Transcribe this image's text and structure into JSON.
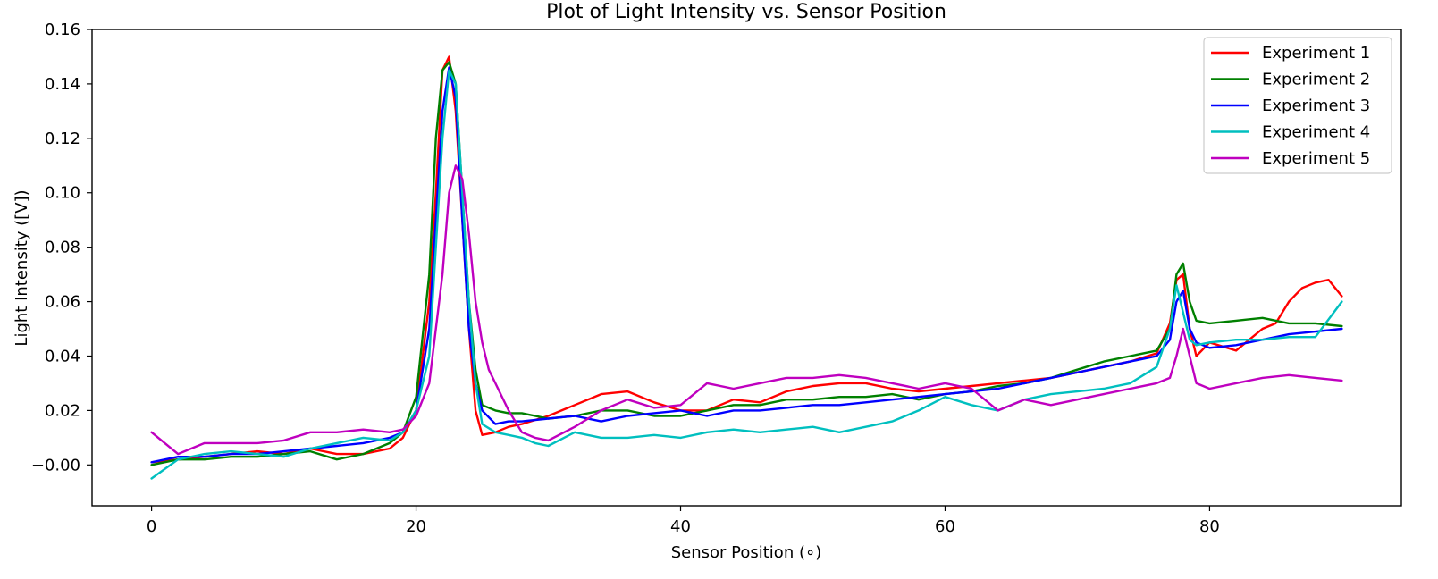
{
  "chart_data": {
    "type": "line",
    "title": "Plot of Light Intensity vs. Sensor Position",
    "xlabel": "Sensor Position (∘)",
    "ylabel": "Light Intensity ([V])",
    "xlim": [
      -4.5,
      94.5
    ],
    "ylim": [
      -0.015,
      0.16
    ],
    "x_ticks": [
      0,
      20,
      40,
      60,
      80
    ],
    "y_ticks": [
      0.0,
      0.02,
      0.04,
      0.06,
      0.08,
      0.1,
      0.12,
      0.14,
      0.16
    ],
    "x_tick_labels": [
      "0",
      "20",
      "40",
      "60",
      "80"
    ],
    "y_tick_labels": [
      "−0.00",
      "0.02",
      "0.04",
      "0.06",
      "0.08",
      "0.10",
      "0.12",
      "0.14",
      "0.16"
    ],
    "grid": false,
    "legend_position": "top-right",
    "series": [
      {
        "name": "Experiment 1",
        "color": "#ff0000",
        "x": [
          0,
          2,
          4,
          6,
          8,
          10,
          12,
          14,
          16,
          18,
          19,
          20,
          21,
          21.5,
          22,
          22.5,
          23,
          23.5,
          24,
          24.5,
          25,
          26,
          27,
          28,
          30,
          32,
          34,
          36,
          38,
          40,
          42,
          44,
          46,
          48,
          50,
          52,
          54,
          56,
          58,
          60,
          62,
          64,
          66,
          68,
          70,
          72,
          74,
          76,
          77,
          77.5,
          78,
          78.5,
          79,
          80,
          82,
          84,
          85,
          86,
          87,
          88,
          89,
          90
        ],
        "y": [
          0.001,
          0.002,
          0.003,
          0.004,
          0.005,
          0.004,
          0.006,
          0.004,
          0.004,
          0.006,
          0.01,
          0.02,
          0.06,
          0.1,
          0.145,
          0.15,
          0.13,
          0.09,
          0.05,
          0.02,
          0.011,
          0.012,
          0.014,
          0.015,
          0.018,
          0.022,
          0.026,
          0.027,
          0.023,
          0.02,
          0.02,
          0.024,
          0.023,
          0.027,
          0.029,
          0.03,
          0.03,
          0.028,
          0.027,
          0.028,
          0.029,
          0.03,
          0.031,
          0.032,
          0.034,
          0.036,
          0.038,
          0.041,
          0.052,
          0.068,
          0.07,
          0.05,
          0.04,
          0.045,
          0.042,
          0.05,
          0.052,
          0.06,
          0.065,
          0.067,
          0.068,
          0.062
        ]
      },
      {
        "name": "Experiment 2",
        "color": "#008000",
        "x": [
          0,
          2,
          4,
          6,
          8,
          10,
          12,
          14,
          16,
          18,
          19,
          20,
          21,
          21.5,
          22,
          22.5,
          23,
          23.5,
          24,
          24.5,
          25,
          26,
          27,
          28,
          30,
          32,
          34,
          36,
          38,
          40,
          42,
          44,
          46,
          48,
          50,
          52,
          54,
          56,
          58,
          60,
          62,
          64,
          66,
          68,
          70,
          72,
          74,
          76,
          77,
          77.5,
          78,
          78.5,
          79,
          80,
          82,
          84,
          86,
          88,
          90
        ],
        "y": [
          0.0,
          0.002,
          0.002,
          0.003,
          0.003,
          0.004,
          0.005,
          0.002,
          0.004,
          0.008,
          0.012,
          0.025,
          0.07,
          0.12,
          0.145,
          0.148,
          0.14,
          0.1,
          0.06,
          0.035,
          0.022,
          0.02,
          0.019,
          0.019,
          0.017,
          0.018,
          0.02,
          0.02,
          0.018,
          0.018,
          0.02,
          0.022,
          0.022,
          0.024,
          0.024,
          0.025,
          0.025,
          0.026,
          0.024,
          0.026,
          0.027,
          0.029,
          0.03,
          0.032,
          0.035,
          0.038,
          0.04,
          0.042,
          0.05,
          0.07,
          0.074,
          0.06,
          0.053,
          0.052,
          0.053,
          0.054,
          0.052,
          0.052,
          0.051
        ]
      },
      {
        "name": "Experiment 3",
        "color": "#0000ff",
        "x": [
          0,
          2,
          4,
          6,
          8,
          10,
          12,
          14,
          16,
          18,
          19,
          20,
          21,
          21.5,
          22,
          22.5,
          23,
          23.5,
          24,
          24.5,
          25,
          26,
          27,
          28,
          30,
          32,
          34,
          36,
          38,
          40,
          42,
          44,
          46,
          48,
          50,
          52,
          54,
          56,
          58,
          60,
          62,
          64,
          66,
          68,
          70,
          72,
          74,
          76,
          77,
          77.5,
          78,
          78.5,
          79,
          80,
          82,
          84,
          86,
          88,
          90
        ],
        "y": [
          0.001,
          0.003,
          0.003,
          0.004,
          0.004,
          0.005,
          0.006,
          0.007,
          0.008,
          0.01,
          0.012,
          0.02,
          0.05,
          0.09,
          0.13,
          0.146,
          0.135,
          0.09,
          0.05,
          0.03,
          0.02,
          0.015,
          0.016,
          0.016,
          0.017,
          0.018,
          0.016,
          0.018,
          0.019,
          0.02,
          0.018,
          0.02,
          0.02,
          0.021,
          0.022,
          0.022,
          0.023,
          0.024,
          0.025,
          0.026,
          0.027,
          0.028,
          0.03,
          0.032,
          0.034,
          0.036,
          0.038,
          0.04,
          0.046,
          0.06,
          0.064,
          0.05,
          0.045,
          0.043,
          0.044,
          0.046,
          0.048,
          0.049,
          0.05
        ]
      },
      {
        "name": "Experiment 4",
        "color": "#00bfbf",
        "x": [
          0,
          2,
          4,
          6,
          8,
          10,
          12,
          14,
          16,
          18,
          19,
          20,
          21,
          21.5,
          22,
          22.5,
          23,
          23.5,
          24,
          24.5,
          25,
          26,
          27,
          28,
          29,
          30,
          32,
          34,
          36,
          38,
          40,
          42,
          44,
          46,
          48,
          50,
          52,
          54,
          56,
          58,
          60,
          62,
          64,
          66,
          68,
          70,
          72,
          74,
          76,
          77,
          77.5,
          78,
          78.5,
          79,
          80,
          82,
          84,
          86,
          88,
          90
        ],
        "y": [
          -0.005,
          0.002,
          0.004,
          0.005,
          0.004,
          0.003,
          0.006,
          0.008,
          0.01,
          0.009,
          0.012,
          0.02,
          0.04,
          0.08,
          0.12,
          0.145,
          0.14,
          0.1,
          0.06,
          0.03,
          0.015,
          0.012,
          0.011,
          0.01,
          0.008,
          0.007,
          0.012,
          0.01,
          0.01,
          0.011,
          0.01,
          0.012,
          0.013,
          0.012,
          0.013,
          0.014,
          0.012,
          0.014,
          0.016,
          0.02,
          0.025,
          0.022,
          0.02,
          0.024,
          0.026,
          0.027,
          0.028,
          0.03,
          0.036,
          0.05,
          0.066,
          0.056,
          0.046,
          0.044,
          0.045,
          0.046,
          0.046,
          0.047,
          0.047,
          0.06
        ]
      },
      {
        "name": "Experiment 5",
        "color": "#bf00bf",
        "x": [
          0,
          2,
          4,
          6,
          8,
          10,
          12,
          14,
          16,
          18,
          19,
          20,
          21,
          22,
          22.5,
          23,
          23.5,
          24,
          24.5,
          25,
          25.5,
          26,
          27,
          28,
          29,
          30,
          32,
          34,
          36,
          38,
          40,
          42,
          44,
          46,
          48,
          50,
          52,
          54,
          56,
          58,
          60,
          62,
          64,
          66,
          68,
          70,
          72,
          74,
          76,
          77,
          77.5,
          78,
          78.5,
          79,
          80,
          82,
          84,
          86,
          88,
          90
        ],
        "y": [
          0.012,
          0.004,
          0.008,
          0.008,
          0.008,
          0.009,
          0.012,
          0.012,
          0.013,
          0.012,
          0.013,
          0.018,
          0.03,
          0.07,
          0.1,
          0.11,
          0.105,
          0.085,
          0.06,
          0.045,
          0.035,
          0.03,
          0.02,
          0.012,
          0.01,
          0.009,
          0.014,
          0.02,
          0.024,
          0.021,
          0.022,
          0.03,
          0.028,
          0.03,
          0.032,
          0.032,
          0.033,
          0.032,
          0.03,
          0.028,
          0.03,
          0.028,
          0.02,
          0.024,
          0.022,
          0.024,
          0.026,
          0.028,
          0.03,
          0.032,
          0.04,
          0.05,
          0.04,
          0.03,
          0.028,
          0.03,
          0.032,
          0.033,
          0.032,
          0.031
        ]
      }
    ]
  }
}
